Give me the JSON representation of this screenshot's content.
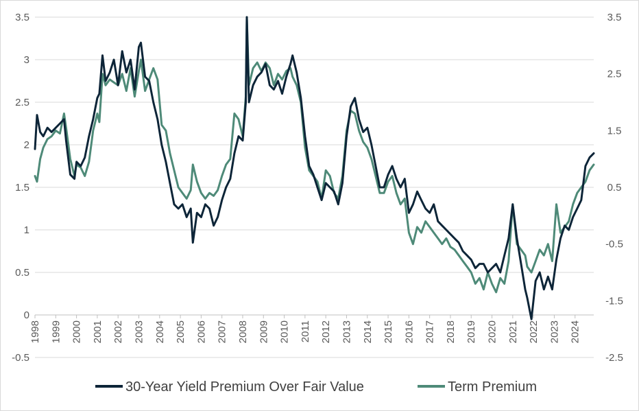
{
  "chart_data": {
    "type": "line",
    "title": "",
    "xlabel": "",
    "ylabel": "",
    "y2label": "",
    "x_tick_labels": [
      "1998",
      "1999",
      "2000",
      "2001",
      "2002",
      "2003",
      "2004",
      "2005",
      "2006",
      "2007",
      "2008",
      "2009",
      "2010",
      "2011",
      "2012",
      "2013",
      "2014",
      "2015",
      "2016",
      "2017",
      "2018",
      "2019",
      "2020",
      "2021",
      "2022",
      "2023",
      "2024"
    ],
    "ylim": [
      -0.5,
      3.5
    ],
    "y_tick_labels": [
      "-0.5",
      "0",
      "0.5",
      "1",
      "1.5",
      "2",
      "2.5",
      "3",
      "3.5"
    ],
    "y2lim": [
      -2.5,
      3.5
    ],
    "y2_tick_labels": [
      "-2.5",
      "-1.5",
      "-0.5",
      "0.5",
      "1.5",
      "2.5",
      "3.5"
    ],
    "grid": true,
    "legend_position": "bottom",
    "colors": {
      "premium": "#0d2538",
      "term": "#4e8a78",
      "grid": "#d9d9d9",
      "text": "#595959"
    },
    "series": [
      {
        "name": "30-Year Yield Premium Over Fair Value",
        "axis": "left",
        "color": "#0d2538",
        "x": [
          1998.0,
          1998.1,
          1998.25,
          1998.4,
          1998.6,
          1998.8,
          1999.0,
          1999.2,
          1999.4,
          1999.5,
          1999.7,
          1999.9,
          2000.0,
          2000.2,
          2000.4,
          2000.6,
          2000.8,
          2001.0,
          2001.1,
          2001.25,
          2001.4,
          2001.6,
          2001.8,
          2002.0,
          2002.2,
          2002.4,
          2002.6,
          2002.8,
          2003.0,
          2003.1,
          2003.3,
          2003.5,
          2003.7,
          2003.9,
          2004.1,
          2004.3,
          2004.5,
          2004.7,
          2004.9,
          2005.1,
          2005.3,
          2005.5,
          2005.6,
          2005.8,
          2006.0,
          2006.2,
          2006.4,
          2006.6,
          2006.8,
          2007.0,
          2007.2,
          2007.4,
          2007.6,
          2007.8,
          2008.0,
          2008.15,
          2008.2,
          2008.3,
          2008.5,
          2008.7,
          2008.9,
          2009.1,
          2009.3,
          2009.5,
          2009.7,
          2009.9,
          2010.1,
          2010.3,
          2010.4,
          2010.6,
          2010.8,
          2011.0,
          2011.2,
          2011.4,
          2011.6,
          2011.8,
          2012.0,
          2012.2,
          2012.4,
          2012.6,
          2012.8,
          2013.0,
          2013.2,
          2013.4,
          2013.6,
          2013.8,
          2014.0,
          2014.2,
          2014.4,
          2014.6,
          2014.8,
          2015.0,
          2015.2,
          2015.4,
          2015.6,
          2015.8,
          2016.0,
          2016.2,
          2016.4,
          2016.6,
          2016.8,
          2017.0,
          2017.2,
          2017.4,
          2017.6,
          2017.8,
          2018.0,
          2018.2,
          2018.4,
          2018.6,
          2018.8,
          2019.0,
          2019.2,
          2019.4,
          2019.6,
          2019.8,
          2020.0,
          2020.2,
          2020.4,
          2020.6,
          2020.8,
          2021.0,
          2021.2,
          2021.4,
          2021.6,
          2021.7,
          2021.9,
          2022.1,
          2022.3,
          2022.5,
          2022.7,
          2022.9,
          2023.1,
          2023.3,
          2023.5,
          2023.7,
          2023.9,
          2024.1,
          2024.3,
          2024.5,
          2024.7,
          2024.9
        ],
        "y": [
          1.95,
          2.35,
          2.15,
          2.1,
          2.2,
          2.15,
          2.2,
          2.25,
          2.3,
          2.05,
          1.65,
          1.6,
          1.8,
          1.75,
          1.85,
          2.1,
          2.3,
          2.55,
          2.6,
          3.05,
          2.75,
          2.85,
          3.0,
          2.7,
          3.1,
          2.85,
          3.0,
          2.65,
          3.15,
          3.2,
          2.8,
          2.75,
          2.5,
          2.3,
          2.0,
          1.8,
          1.55,
          1.3,
          1.25,
          1.3,
          1.15,
          1.25,
          0.85,
          1.2,
          1.15,
          1.3,
          1.25,
          1.05,
          1.15,
          1.35,
          1.5,
          1.6,
          1.9,
          2.1,
          2.05,
          2.5,
          3.5,
          2.5,
          2.7,
          2.8,
          2.85,
          2.95,
          2.7,
          2.65,
          2.75,
          2.6,
          2.8,
          2.95,
          3.05,
          2.85,
          2.55,
          2.1,
          1.75,
          1.65,
          1.5,
          1.35,
          1.55,
          1.5,
          1.45,
          1.3,
          1.55,
          2.1,
          2.45,
          2.55,
          2.3,
          2.15,
          2.2,
          2.0,
          1.75,
          1.5,
          1.5,
          1.65,
          1.75,
          1.6,
          1.5,
          1.6,
          1.2,
          1.3,
          1.45,
          1.35,
          1.25,
          1.2,
          1.3,
          1.1,
          1.05,
          1.0,
          0.95,
          0.9,
          0.85,
          0.75,
          0.7,
          0.65,
          0.55,
          0.6,
          0.6,
          0.5,
          0.55,
          0.6,
          0.5,
          0.7,
          0.9,
          1.3,
          0.9,
          0.6,
          0.3,
          0.2,
          -0.05,
          0.4,
          0.5,
          0.3,
          0.45,
          0.3,
          0.65,
          0.9,
          1.05,
          1.0,
          1.15,
          1.25,
          1.35,
          1.75,
          1.85,
          1.9
        ]
      },
      {
        "name": "Term Premium",
        "axis": "right",
        "color": "#4e8a78",
        "x": [
          1998.0,
          1998.1,
          1998.25,
          1998.4,
          1998.6,
          1998.8,
          1999.0,
          1999.2,
          1999.4,
          1999.5,
          1999.7,
          1999.9,
          2000.0,
          2000.2,
          2000.4,
          2000.6,
          2000.8,
          2001.0,
          2001.1,
          2001.25,
          2001.4,
          2001.6,
          2001.8,
          2002.0,
          2002.2,
          2002.4,
          2002.6,
          2002.8,
          2003.0,
          2003.1,
          2003.3,
          2003.5,
          2003.7,
          2003.9,
          2004.1,
          2004.3,
          2004.5,
          2004.7,
          2004.9,
          2005.1,
          2005.3,
          2005.5,
          2005.6,
          2005.8,
          2006.0,
          2006.2,
          2006.4,
          2006.6,
          2006.8,
          2007.0,
          2007.2,
          2007.4,
          2007.6,
          2007.8,
          2008.0,
          2008.15,
          2008.2,
          2008.3,
          2008.5,
          2008.7,
          2008.9,
          2009.1,
          2009.3,
          2009.5,
          2009.7,
          2009.9,
          2010.1,
          2010.3,
          2010.4,
          2010.6,
          2010.8,
          2011.0,
          2011.2,
          2011.4,
          2011.6,
          2011.8,
          2012.0,
          2012.2,
          2012.4,
          2012.6,
          2012.8,
          2013.0,
          2013.2,
          2013.4,
          2013.6,
          2013.8,
          2014.0,
          2014.2,
          2014.4,
          2014.6,
          2014.8,
          2015.0,
          2015.2,
          2015.4,
          2015.6,
          2015.8,
          2016.0,
          2016.2,
          2016.4,
          2016.6,
          2016.8,
          2017.0,
          2017.2,
          2017.4,
          2017.6,
          2017.8,
          2018.0,
          2018.2,
          2018.4,
          2018.6,
          2018.8,
          2019.0,
          2019.2,
          2019.4,
          2019.6,
          2019.8,
          2020.0,
          2020.2,
          2020.4,
          2020.6,
          2020.8,
          2021.0,
          2021.2,
          2021.4,
          2021.6,
          2021.7,
          2021.9,
          2022.1,
          2022.3,
          2022.5,
          2022.7,
          2022.9,
          2023.1,
          2023.3,
          2023.5,
          2023.7,
          2023.9,
          2024.1,
          2024.3,
          2024.5,
          2024.7,
          2024.9
        ],
        "y": [
          0.7,
          0.6,
          1.0,
          1.2,
          1.35,
          1.4,
          1.5,
          1.45,
          1.8,
          1.55,
          1.0,
          0.7,
          0.9,
          0.85,
          0.7,
          0.95,
          1.5,
          1.8,
          1.65,
          2.5,
          2.3,
          2.4,
          2.35,
          2.3,
          2.5,
          2.2,
          2.6,
          2.1,
          2.55,
          2.75,
          2.2,
          2.4,
          2.6,
          2.4,
          1.6,
          1.5,
          1.1,
          0.8,
          0.5,
          0.4,
          0.3,
          0.45,
          0.9,
          0.6,
          0.4,
          0.3,
          0.4,
          0.35,
          0.45,
          0.7,
          0.9,
          1.0,
          1.8,
          1.7,
          1.4,
          2.1,
          3.5,
          2.3,
          2.6,
          2.7,
          2.55,
          2.7,
          2.6,
          2.3,
          2.5,
          2.4,
          2.55,
          2.6,
          2.45,
          2.3,
          2.0,
          1.2,
          0.8,
          0.7,
          0.6,
          0.3,
          0.8,
          0.7,
          0.4,
          0.3,
          0.7,
          1.5,
          1.85,
          1.8,
          1.5,
          1.3,
          1.2,
          1.0,
          0.7,
          0.4,
          0.4,
          0.6,
          0.7,
          0.4,
          0.2,
          0.3,
          -0.3,
          -0.5,
          -0.2,
          -0.3,
          -0.1,
          -0.2,
          -0.3,
          -0.4,
          -0.5,
          -0.4,
          -0.55,
          -0.6,
          -0.7,
          -0.8,
          -0.9,
          -1.0,
          -1.2,
          -1.1,
          -1.3,
          -1.0,
          -1.2,
          -1.35,
          -1.1,
          -1.2,
          -0.8,
          0.2,
          -0.5,
          -0.6,
          -0.7,
          -0.9,
          -1.0,
          -0.8,
          -0.6,
          -0.7,
          -0.5,
          -0.8,
          0.2,
          -0.3,
          -0.2,
          -0.1,
          0.2,
          0.4,
          0.5,
          0.6,
          0.8,
          0.9
        ]
      }
    ]
  }
}
